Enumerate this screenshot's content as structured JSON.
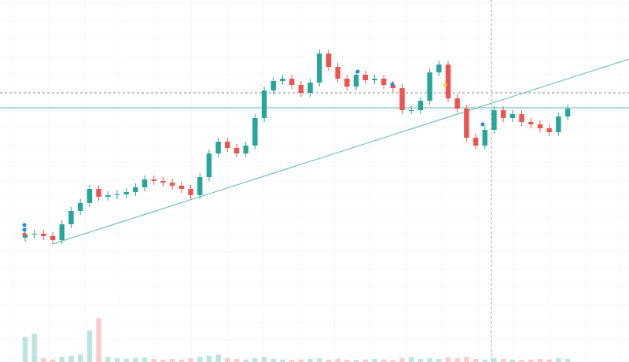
{
  "chart_data": {
    "type": "candlestick",
    "open": [
      158,
      162,
      163,
      160,
      155,
      175,
      192,
      202,
      220,
      210,
      212,
      213,
      216,
      222,
      232,
      230,
      228,
      224,
      220,
      212,
      235,
      265,
      280,
      272,
      265,
      275,
      310,
      345,
      357,
      360,
      352,
      342,
      355,
      392,
      375,
      360,
      350,
      365,
      358,
      360,
      352,
      348,
      320,
      320,
      332,
      368,
      378,
      335,
      322,
      285,
      275,
      295,
      320,
      310,
      315,
      305,
      302,
      297,
      292,
      312
    ],
    "high": [
      167,
      168,
      168,
      165,
      180,
      197,
      207,
      225,
      225,
      217,
      218,
      221,
      227,
      237,
      237,
      235,
      233,
      229,
      225,
      240,
      270,
      285,
      285,
      277,
      280,
      315,
      350,
      362,
      365,
      365,
      357,
      360,
      397,
      397,
      380,
      365,
      370,
      370,
      365,
      365,
      357,
      353,
      325,
      337,
      373,
      383,
      383,
      340,
      327,
      290,
      300,
      325,
      325,
      320,
      320,
      310,
      307,
      302,
      317,
      327
    ],
    "low": [
      153,
      157,
      155,
      150,
      150,
      170,
      187,
      197,
      205,
      205,
      207,
      208,
      211,
      217,
      225,
      223,
      219,
      215,
      207,
      207,
      230,
      260,
      267,
      260,
      260,
      270,
      305,
      340,
      352,
      347,
      337,
      337,
      350,
      370,
      355,
      345,
      345,
      353,
      353,
      347,
      343,
      315,
      315,
      315,
      327,
      363,
      330,
      317,
      280,
      270,
      270,
      290,
      305,
      305,
      300,
      297,
      292,
      287,
      287,
      307
    ],
    "close": [
      162,
      163,
      160,
      155,
      175,
      192,
      202,
      220,
      210,
      212,
      213,
      216,
      222,
      232,
      230,
      228,
      224,
      220,
      212,
      235,
      265,
      280,
      272,
      265,
      275,
      310,
      345,
      357,
      360,
      352,
      342,
      355,
      392,
      375,
      360,
      350,
      365,
      358,
      360,
      352,
      348,
      320,
      320,
      332,
      368,
      378,
      335,
      322,
      285,
      275,
      295,
      320,
      310,
      315,
      305,
      302,
      297,
      292,
      312,
      322
    ],
    "volume": [
      40,
      45,
      6,
      4,
      8,
      10,
      12,
      50,
      70,
      8,
      6,
      5,
      6,
      7,
      5,
      4,
      5,
      4,
      6,
      8,
      10,
      12,
      6,
      5,
      4,
      6,
      8,
      5,
      4,
      3,
      4,
      5,
      6,
      4,
      5,
      4,
      3,
      4,
      5,
      4,
      3,
      6,
      8,
      5,
      6,
      5,
      7,
      6,
      8,
      5,
      4,
      6,
      5,
      4,
      3,
      4,
      5,
      4,
      6,
      5
    ],
    "up_color": "#26a69a",
    "down_color": "#ef5350",
    "ylim": [
      0,
      460
    ],
    "volume_ylim": [
      0,
      100
    ],
    "hline": 323,
    "dashed_hline": 342,
    "trendline": {
      "x": [
        3,
        65.7
      ],
      "values": [
        150,
        385
      ],
      "color": "#5fb8a8"
    }
  }
}
